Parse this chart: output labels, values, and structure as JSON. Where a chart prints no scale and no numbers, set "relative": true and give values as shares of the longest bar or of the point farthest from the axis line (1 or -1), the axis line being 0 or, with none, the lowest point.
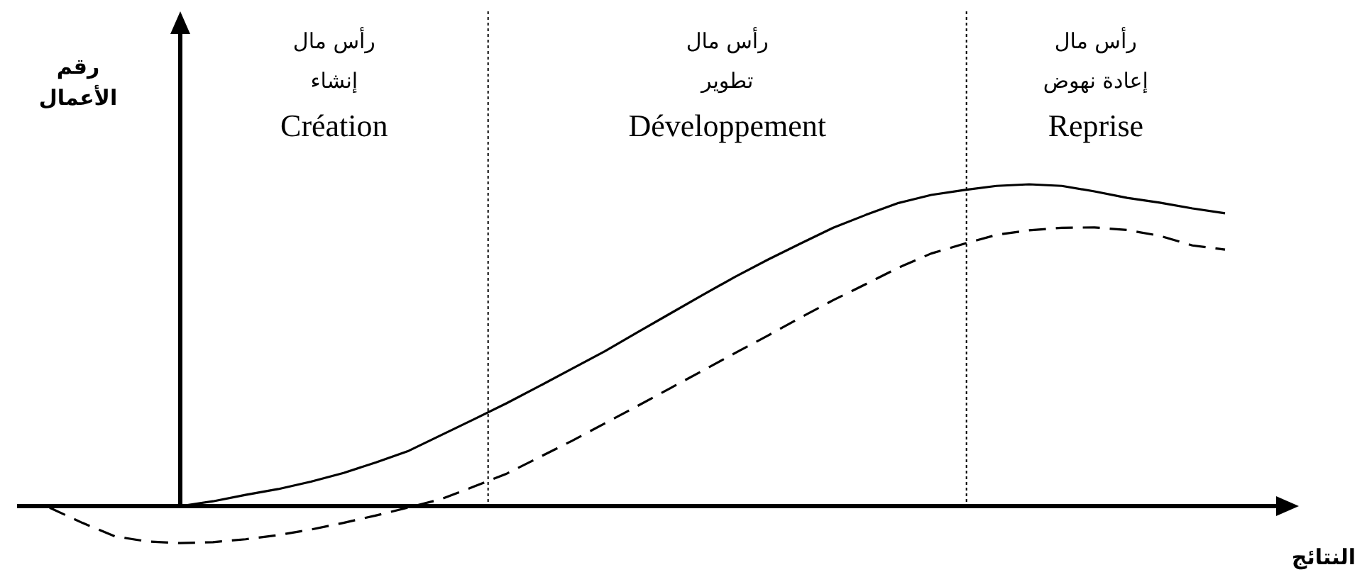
{
  "chart_data": {
    "type": "line",
    "relative": true,
    "ylabel": "رقم الأعمال",
    "xlabel": "النتائج",
    "categories": [
      null,
      null,
      null,
      null,
      null,
      null,
      null,
      null,
      null,
      null,
      null,
      null,
      null,
      null,
      null,
      null,
      null,
      null,
      null,
      null,
      null,
      null,
      null,
      null,
      null,
      null,
      null,
      null,
      null,
      null,
      null,
      null,
      null,
      null,
      null,
      null,
      null
    ],
    "series": [
      {
        "color": "#000000",
        "line_style": "solid",
        "values": [
          null,
          null,
          null,
          null,
          0,
          0.015,
          0.035,
          0.053,
          0.076,
          0.103,
          0.136,
          0.172,
          0.221,
          0.27,
          0.32,
          0.373,
          0.427,
          0.481,
          0.54,
          0.598,
          0.656,
          0.713,
          0.766,
          0.816,
          0.865,
          0.905,
          0.942,
          0.967,
          0.982,
          0.995,
          1,
          0.995,
          0.978,
          0.958,
          0.943,
          0.925,
          0.91
        ]
      },
      {
        "color": "#000000",
        "line_style": "dashed",
        "values": [
          -0.005,
          -0.052,
          -0.094,
          -0.11,
          -0.115,
          -0.112,
          -0.103,
          -0.09,
          -0.073,
          -0.052,
          -0.029,
          -0.004,
          0.022,
          0.061,
          0.101,
          0.152,
          0.203,
          0.257,
          0.311,
          0.366,
          0.421,
          0.476,
          0.53,
          0.586,
          0.64,
          0.69,
          0.741,
          0.785,
          0.815,
          0.843,
          0.857,
          0.865,
          0.866,
          0.858,
          0.84,
          0.81,
          0.797
        ]
      }
    ],
    "annotations": [
      "رأس مال\nإنشاء\nCréation",
      "رأس مال\nتطوير\nDéveloppement",
      "رأس مال\nإعادة نهوض\nReprise"
    ]
  }
}
